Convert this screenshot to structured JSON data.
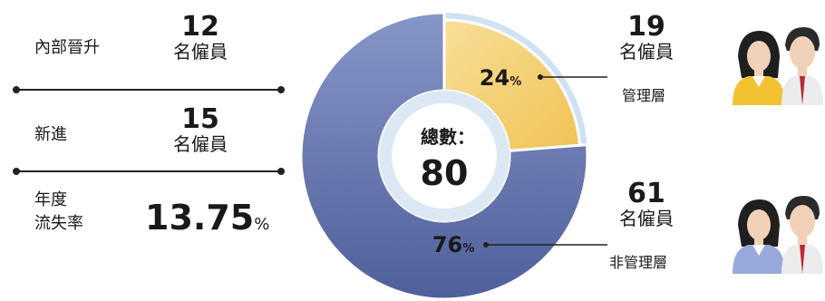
{
  "left": {
    "internal": {
      "label": "內部晉升",
      "value": "12",
      "unit": "名僱員"
    },
    "new_hires": {
      "label": "新進",
      "value": "15",
      "unit": "名僱員"
    },
    "turnover": {
      "label_line1": "年度",
      "label_line2": "流失率",
      "value": "13.75",
      "unit": "%"
    }
  },
  "center": {
    "label": "總數：",
    "value": "80"
  },
  "right": {
    "management": {
      "value": "19",
      "unit": "名僱員",
      "category": "管理層",
      "icon": "person-pair-yellow-icon"
    },
    "non_management": {
      "value": "61",
      "unit": "名僱員",
      "category": "非管理層",
      "icon": "person-pair-blue-icon"
    }
  },
  "chart_data": {
    "type": "pie",
    "total": 80,
    "slices": [
      {
        "name": "管理層",
        "value": 19,
        "percent": 24,
        "label": "24",
        "unit": "%",
        "color": "#f2cb6a"
      },
      {
        "name": "非管理層",
        "value": 61,
        "percent": 76,
        "label": "76",
        "unit": "%",
        "color": "#5f73b0"
      }
    ]
  }
}
